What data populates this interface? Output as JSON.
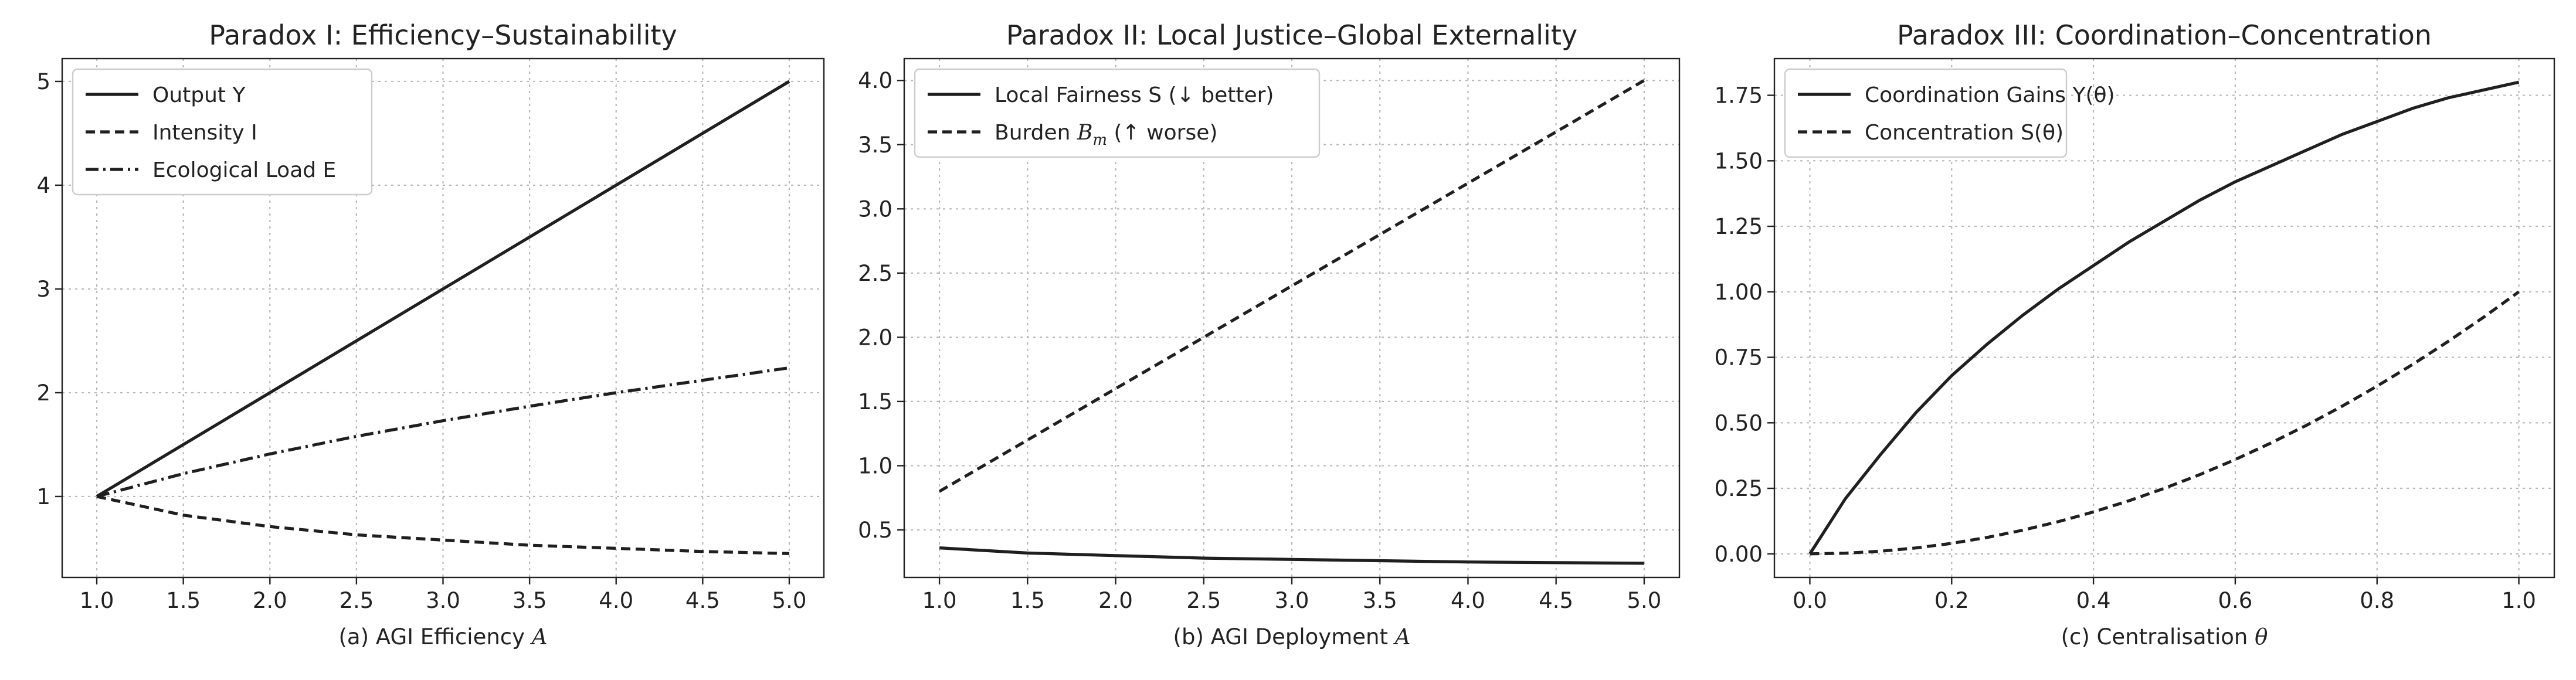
{
  "colors": {
    "line": "#1f1f1f",
    "grid": "#b8b8b8",
    "frame": "#222222"
  },
  "chart_data": [
    {
      "type": "line",
      "title": "Paradox I: Efficiency–Sustainability",
      "xlabel": "(a) AGI Efficiency ",
      "xlabel_symbol": "A",
      "xlim": [
        0.8,
        5.2
      ],
      "ylim": [
        0.22,
        5.22
      ],
      "xticks": [
        "1.0",
        "1.5",
        "2.0",
        "2.5",
        "3.0",
        "3.5",
        "4.0",
        "4.5",
        "5.0"
      ],
      "yticks": [
        "1",
        "2",
        "3",
        "4",
        "5"
      ],
      "grid": true,
      "legend_placement": "upper-left",
      "x": [
        1.0,
        1.5,
        2.0,
        2.5,
        3.0,
        3.5,
        4.0,
        4.5,
        5.0
      ],
      "series": [
        {
          "name": "Output Y",
          "style": "solid",
          "values": [
            1.0,
            1.5,
            2.0,
            2.5,
            3.0,
            3.5,
            4.0,
            4.5,
            5.0
          ]
        },
        {
          "name": "Intensity I",
          "style": "dashed",
          "values": [
            1.0,
            0.82,
            0.71,
            0.63,
            0.58,
            0.53,
            0.5,
            0.47,
            0.45
          ]
        },
        {
          "name": "Ecological Load E",
          "style": "dashdot",
          "values": [
            1.0,
            1.22,
            1.41,
            1.58,
            1.73,
            1.87,
            2.0,
            2.12,
            2.24
          ]
        }
      ]
    },
    {
      "type": "line",
      "title": "Paradox II: Local Justice–Global Externality",
      "xlabel": "(b) AGI Deployment ",
      "xlabel_symbol": "A",
      "xlim": [
        0.8,
        5.2
      ],
      "ylim": [
        0.13,
        4.17
      ],
      "xticks": [
        "1.0",
        "1.5",
        "2.0",
        "2.5",
        "3.0",
        "3.5",
        "4.0",
        "4.5",
        "5.0"
      ],
      "yticks": [
        "0.5",
        "1.0",
        "1.5",
        "2.0",
        "2.5",
        "3.0",
        "3.5",
        "4.0"
      ],
      "grid": true,
      "legend_placement": "upper-left",
      "x": [
        1.0,
        1.5,
        2.0,
        2.5,
        3.0,
        3.5,
        4.0,
        4.5,
        5.0
      ],
      "series": [
        {
          "name": "Local Fairness S (↓ better)",
          "style": "solid",
          "values": [
            0.36,
            0.32,
            0.3,
            0.28,
            0.27,
            0.26,
            0.25,
            0.245,
            0.24
          ]
        },
        {
          "name": "Burden ",
          "name_symbol": "B",
          "name_subscript": "m",
          "name_suffix": " (↑ worse)",
          "style": "dashed",
          "values": [
            0.8,
            1.2,
            1.6,
            2.0,
            2.4,
            2.8,
            3.2,
            3.6,
            4.0
          ]
        }
      ]
    },
    {
      "type": "line",
      "title": "Paradox III: Coordination–Concentration",
      "xlabel": "(c) Centralisation ",
      "xlabel_symbol": "θ",
      "xlim": [
        -0.05,
        1.05
      ],
      "ylim": [
        -0.09,
        1.89
      ],
      "xticks": [
        "0.0",
        "0.2",
        "0.4",
        "0.6",
        "0.8",
        "1.0"
      ],
      "yticks": [
        "0.00",
        "0.25",
        "0.50",
        "0.75",
        "1.00",
        "1.25",
        "1.50",
        "1.75"
      ],
      "grid": true,
      "legend_placement": "upper-left",
      "x": [
        0.0,
        0.05,
        0.1,
        0.15,
        0.2,
        0.25,
        0.3,
        0.35,
        0.4,
        0.45,
        0.5,
        0.55,
        0.6,
        0.65,
        0.7,
        0.75,
        0.8,
        0.85,
        0.9,
        0.95,
        1.0
      ],
      "series": [
        {
          "name": "Coordination Gains Y(θ)",
          "style": "solid",
          "values": [
            0.0,
            0.21,
            0.38,
            0.54,
            0.68,
            0.8,
            0.91,
            1.01,
            1.1,
            1.19,
            1.27,
            1.35,
            1.42,
            1.48,
            1.54,
            1.6,
            1.65,
            1.7,
            1.74,
            1.77,
            1.8
          ]
        },
        {
          "name": "Concentration S(θ)",
          "style": "dashed",
          "values": [
            0.0,
            0.0025,
            0.01,
            0.0225,
            0.04,
            0.0625,
            0.09,
            0.1225,
            0.16,
            0.2025,
            0.25,
            0.3025,
            0.36,
            0.4225,
            0.49,
            0.5625,
            0.64,
            0.7225,
            0.81,
            0.9025,
            1.0
          ]
        }
      ]
    }
  ]
}
